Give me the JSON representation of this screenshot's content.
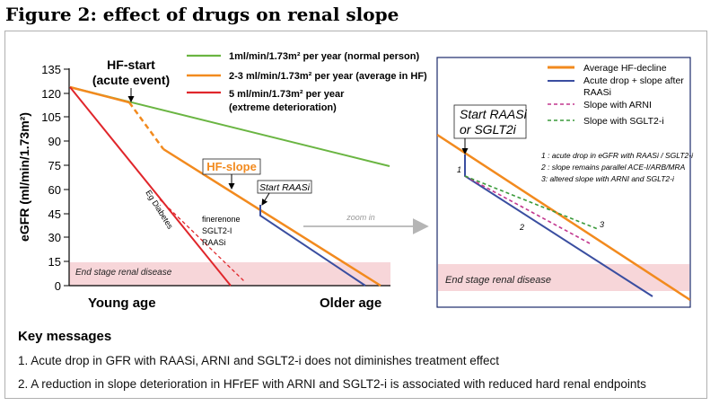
{
  "figure": {
    "title": "Figure 2: effect of drugs on renal slope"
  },
  "main_chart": {
    "ylabel": "eGFR (ml/min/1.73m²)",
    "ylim": [
      0,
      135
    ],
    "y_ticks": [
      "135",
      "120",
      "105",
      "90",
      "75",
      "60",
      "45",
      "30",
      "15",
      "0"
    ],
    "x_labels": {
      "left": "Young age",
      "right": "Older age"
    },
    "esrd_label": "End stage renal disease",
    "annotations": {
      "hf_start_line1": "HF-start",
      "hf_start_line2": "(acute event)",
      "hf_slope": "HF-slope",
      "start_raasi": "Start RAASi",
      "eg_diabetes": "Eg Diabetes",
      "drug_1": "finerenone",
      "drug_2": "SGLT2-I",
      "drug_3": "RAASi",
      "zoom_in": "zoom in"
    },
    "legend": [
      {
        "label": "1ml/min/1.73m² per year (normal person)",
        "color": "#6ab542"
      },
      {
        "label": "2-3 ml/min/1.73m² per year (average in HF)",
        "color": "#f28a1e"
      },
      {
        "label_line1": "5 ml/min/1.73m² per year",
        "label_line2": "(extreme deterioration)",
        "color": "#e0262b"
      }
    ],
    "colors": {
      "normal": "#6ab542",
      "hf": "#f28a1e",
      "extreme": "#e0262b",
      "raasi": "#3a4ea0",
      "esrd_band": "#f7d6d9"
    }
  },
  "zoom_panel": {
    "legend": [
      {
        "label": "Average HF-decline",
        "color": "#f28a1e"
      },
      {
        "label_line1": "Acute drop + slope after",
        "label_line2": "RAASi",
        "color": "#3a4ea0"
      },
      {
        "label": "Slope with ARNI",
        "color": "#c2368e"
      },
      {
        "label": "Slope with SGLT2-i",
        "color": "#3a9a3a"
      }
    ],
    "start_label_line1": "Start RAASi",
    "start_label_line2": "or SGLT2i",
    "notes": [
      "1 : acute drop in eGFR with RAASi / SGLT2-i",
      "2 : slope remains parallel ACE-I/ARB/MRA",
      "3: altered slope with ARNI and SGLT2-i"
    ],
    "marker_1": "1",
    "marker_2": "2",
    "marker_3": "3",
    "esrd_label": "End stage renal disease"
  },
  "key_messages": {
    "title": "Key messages",
    "items": [
      "1. Acute drop in GFR with RAASi, ARNI and SGLT2-i does not diminishes treatment effect",
      "2. A reduction in slope deterioration in HFrEF with ARNI and SGLT2-i is associated with reduced hard renal endpoints"
    ]
  }
}
